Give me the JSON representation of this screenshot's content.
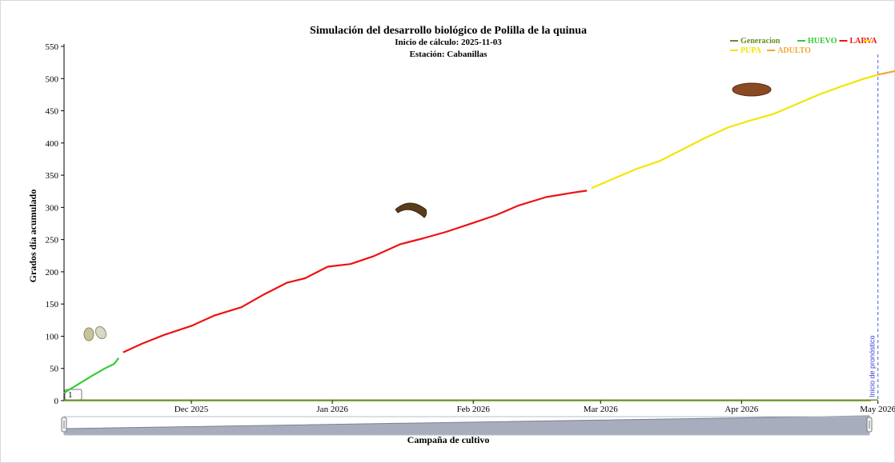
{
  "chart_data": {
    "type": "line",
    "title": "Simulación del desarrollo biológico de Polilla de la quinua",
    "subtitle_start": "Inicio de cálculo: 2025-11-03",
    "subtitle_station": "Estación: Cabanillas",
    "xlabel": "Campaña de cultivo",
    "ylabel": "Grados día acumulado",
    "ylim": [
      0,
      550
    ],
    "yticks": [
      0,
      50,
      100,
      150,
      200,
      250,
      300,
      350,
      400,
      450,
      500,
      550
    ],
    "xlim": [
      "2025-11-03",
      "2026-05-01"
    ],
    "xticks": [
      {
        "label": "Dec 2025",
        "date": "2025-12-01"
      },
      {
        "label": "Jan 2026",
        "date": "2026-01-01"
      },
      {
        "label": "Feb 2026",
        "date": "2026-02-01"
      },
      {
        "label": "Mar 2026",
        "date": "2026-03-01"
      },
      {
        "label": "Apr 2026",
        "date": "2026-04-01"
      },
      {
        "label": "May 2026",
        "date": "2026-05-01"
      }
    ],
    "grid": false,
    "legend_position": "top-right",
    "series": [
      {
        "name": "Generacion",
        "color": "#6b8e23",
        "points": [
          [
            "2025-11-03",
            1
          ],
          [
            "2026-05-01",
            1
          ]
        ]
      },
      {
        "name": "HUEVO",
        "color": "#33cc33",
        "points": [
          [
            "2025-11-03",
            12
          ],
          [
            "2025-11-06",
            25
          ],
          [
            "2025-11-09",
            38
          ],
          [
            "2025-11-12",
            50
          ],
          [
            "2025-11-14",
            57
          ],
          [
            "2025-11-15",
            66
          ]
        ]
      },
      {
        "name": "LARVA",
        "color": "#ee1111",
        "points": [
          [
            "2025-11-16",
            75
          ],
          [
            "2025-11-20",
            88
          ],
          [
            "2025-11-25",
            102
          ],
          [
            "2025-12-01",
            116
          ],
          [
            "2025-12-06",
            132
          ],
          [
            "2025-12-12",
            145
          ],
          [
            "2025-12-17",
            165
          ],
          [
            "2025-12-22",
            183
          ],
          [
            "2025-12-26",
            190
          ],
          [
            "2025-12-31",
            208
          ],
          [
            "2026-01-05",
            212
          ],
          [
            "2026-01-10",
            224
          ],
          [
            "2026-01-16",
            243
          ],
          [
            "2026-01-21",
            252
          ],
          [
            "2026-01-26",
            262
          ],
          [
            "2026-02-01",
            276
          ],
          [
            "2026-02-06",
            288
          ],
          [
            "2026-02-11",
            303
          ],
          [
            "2026-02-17",
            316
          ],
          [
            "2026-02-23",
            323
          ],
          [
            "2026-02-26",
            326
          ]
        ]
      },
      {
        "name": "PUPA",
        "color": "#f2e600",
        "points": [
          [
            "2026-02-27",
            330
          ],
          [
            "2026-03-04",
            345
          ],
          [
            "2026-03-09",
            360
          ],
          [
            "2026-03-14",
            372
          ],
          [
            "2026-03-19",
            390
          ],
          [
            "2026-03-24",
            408
          ],
          [
            "2026-03-29",
            424
          ],
          [
            "2026-04-03",
            435
          ],
          [
            "2026-04-08",
            445
          ],
          [
            "2026-04-13",
            460
          ],
          [
            "2026-04-18",
            475
          ],
          [
            "2026-04-23",
            488
          ],
          [
            "2026-04-28",
            500
          ],
          [
            "2026-05-01",
            506
          ]
        ]
      },
      {
        "name": "ADULTO",
        "color": "#f0a830",
        "points": [
          [
            "2026-05-01",
            506
          ],
          [
            "2026-05-05",
            512
          ]
        ]
      }
    ],
    "annotations": [
      {
        "text": "Inicio de pronóstico",
        "date": "2026-05-01"
      },
      {
        "text": "1",
        "value": 1
      }
    ],
    "forecast_region": {
      "start": "2026-05-01",
      "color": "#d8e4f8"
    }
  }
}
